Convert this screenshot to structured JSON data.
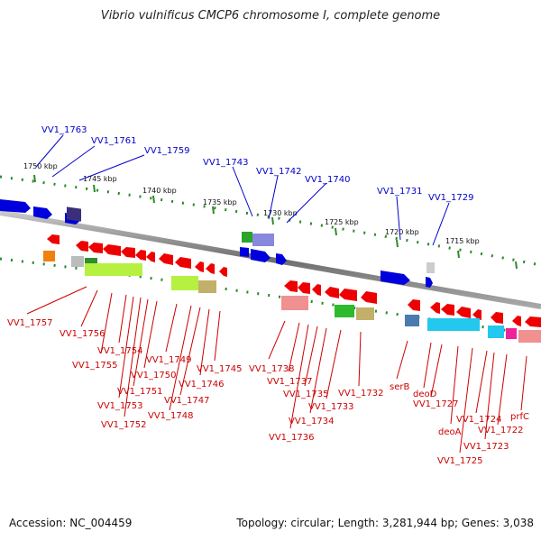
{
  "title": "Vibrio vulnificus CMCP6 chromosome I, complete genome",
  "footer": {
    "accession": "Accession: NC_004459",
    "stats": "Topology: circular; Length: 3,281,944 bp; Genes: 3,038"
  },
  "scale_ticks": [
    "1750 kbp",
    "1745 kbp",
    "1740 kbp",
    "1735 kbp",
    "1730 kbp",
    "1725 kbp",
    "1720 kbp",
    "1715 kbp"
  ],
  "upper_labels": [
    "VV1_1763",
    "VV1_1761",
    "VV1_1759",
    "VV1_1743",
    "VV1_1742",
    "VV1_1740",
    "VV1_1731",
    "VV1_1729"
  ],
  "lower_labels": [
    "VV1_1757",
    "VV1_1756",
    "VV1_1755",
    "VV1_1754",
    "VV1_1753",
    "VV1_1752",
    "VV1_1751",
    "VV1_1750",
    "VV1_1749",
    "VV1_1748",
    "VV1_1747",
    "VV1_1746",
    "VV1_1745",
    "VV1_1738",
    "VV1_1737",
    "VV1_1736",
    "VV1_1735",
    "VV1_1734",
    "VV1_1733",
    "VV1_1732",
    "serB",
    "deoD",
    "VV1_1727",
    "deoA",
    "VV1_1725",
    "VV1_1724",
    "VV1_1723",
    "VV1_1722",
    "prfC"
  ],
  "colors": {
    "forward_label": "#0000cc",
    "reverse_label": "#cc0000",
    "backbone": "#777777",
    "ticks": "#228822"
  }
}
